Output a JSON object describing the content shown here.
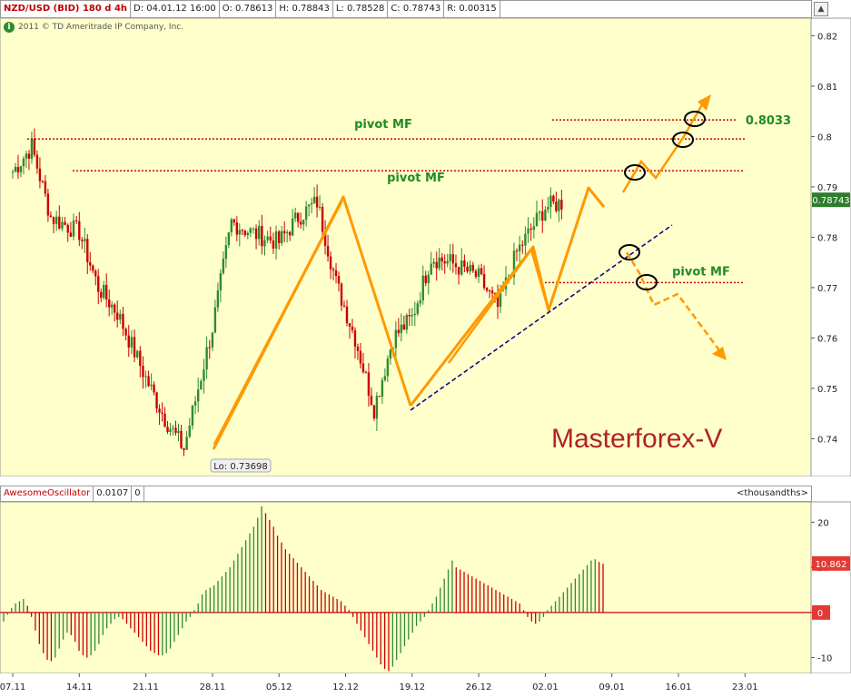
{
  "header": {
    "symbol": "NZD/USD (BID) 180 d 4h",
    "date": "D: 04.01.12 16:00",
    "open": "O: 0.78613",
    "high": "H: 0.78843",
    "low": "L: 0.78528",
    "close": "C: 0.78743",
    "range": "R: 0.00315",
    "copyright": "2011 © TD Ameritrade IP Company, Inc."
  },
  "colors": {
    "background": "#ffffcc",
    "bull": "#2e8b2e",
    "bear": "#cc0000",
    "orange": "#ff9900",
    "pivot": "#cc0000",
    "trend": "#000080",
    "annotation": "#228b22"
  },
  "chart_data": [
    {
      "type": "candlestick",
      "title": "NZD/USD (BID) 180 d 4h",
      "y_ticks": [
        "0.82",
        "0.81",
        "0.8",
        "0.79",
        "0.78",
        "0.77",
        "0.76",
        "0.75",
        "0.74"
      ],
      "ylim": [
        0.7325,
        0.8235
      ],
      "x_ticks": [
        "07.11",
        "14.11",
        "21.11",
        "28.11",
        "05.12",
        "12.12",
        "19.12",
        "26.12",
        "02.01",
        "09.01",
        "16.01",
        "23.01"
      ],
      "current_price": "0.78743",
      "low_label": "Lo: 0.73698",
      "watermark": "Masterforex-V",
      "path_points": [
        [
          "07.11",
          0.793
        ],
        [
          "09.11",
          0.798
        ],
        [
          "11.11",
          0.784
        ],
        [
          "14.11",
          0.781
        ],
        [
          "16.11",
          0.77
        ],
        [
          "18.11",
          0.765
        ],
        [
          "21.11",
          0.752
        ],
        [
          "23.11",
          0.744
        ],
        [
          "25.11",
          0.738
        ],
        [
          "28.11",
          0.762
        ],
        [
          "30.11",
          0.783
        ],
        [
          "02.12",
          0.781
        ],
        [
          "05.12",
          0.779
        ],
        [
          "07.12",
          0.784
        ],
        [
          "09.12",
          0.787
        ],
        [
          "11.12",
          0.771
        ],
        [
          "13.12",
          0.76
        ],
        [
          "15.12",
          0.746
        ],
        [
          "17.12",
          0.76
        ],
        [
          "19.12",
          0.764
        ],
        [
          "21.12",
          0.776
        ],
        [
          "23.12",
          0.775
        ],
        [
          "26.12",
          0.772
        ],
        [
          "28.12",
          0.766
        ],
        [
          "30.12",
          0.777
        ],
        [
          "02.01",
          0.786
        ],
        [
          "04.01",
          0.787
        ]
      ],
      "annotations": [
        {
          "text": "pivot MF",
          "price": 0.7995
        },
        {
          "text": "pivot MF",
          "price": 0.7932
        },
        {
          "text": "pivot MF",
          "price": 0.771
        },
        {
          "text": "0.8033",
          "price": 0.8033
        }
      ]
    },
    {
      "type": "bar",
      "title": "AwesomeOscillator",
      "value": "0.0107",
      "param": "0",
      "unit": "<thousandths>",
      "y_ticks": [
        "20",
        "10",
        "0",
        "-10"
      ],
      "ylim": [
        -13.5,
        24.5
      ],
      "current_value": "10.862",
      "zero_label": "0",
      "values": [
        -2,
        -0.5,
        1,
        2,
        2.5,
        3,
        1.5,
        -1,
        -4,
        -7,
        -9,
        -10.5,
        -10.8,
        -10,
        -8,
        -6,
        -4.5,
        -5,
        -6.5,
        -8.5,
        -9.5,
        -10,
        -9.5,
        -8.5,
        -7,
        -5,
        -3.5,
        -2.5,
        -1.5,
        -1,
        -1.5,
        -2.5,
        -3.5,
        -4.5,
        -5.5,
        -6.5,
        -7.5,
        -8.5,
        -9,
        -9.5,
        -9.5,
        -9,
        -8,
        -6.5,
        -5,
        -3.5,
        -2,
        -1,
        0.5,
        2,
        4,
        5,
        5.5,
        6,
        7,
        8,
        9,
        10,
        11.5,
        13,
        14.5,
        16,
        17.5,
        19,
        21,
        23.5,
        22,
        20.5,
        19,
        17,
        15.5,
        14,
        13,
        12,
        11,
        10,
        9,
        8,
        7,
        6,
        5,
        4.5,
        4,
        3.5,
        3,
        2.5,
        1.5,
        0.5,
        -1,
        -2.5,
        -4,
        -5.5,
        -7,
        -8.5,
        -10,
        -11.5,
        -12.5,
        -13,
        -12,
        -10.5,
        -9,
        -7.5,
        -6,
        -4.5,
        -3,
        -2,
        -1,
        0.5,
        2,
        3.5,
        5.5,
        7.5,
        9.5,
        11.5,
        10,
        9.5,
        9,
        8.5,
        8,
        7.5,
        7,
        6.5,
        6,
        5.5,
        5,
        4.5,
        4,
        3.5,
        3,
        2.5,
        2,
        0.5,
        -1,
        -2,
        -2.5,
        -2,
        -1,
        0.5,
        1.5,
        2.5,
        3.5,
        4.5,
        5.5,
        6.5,
        7.5,
        8.5,
        9.5,
        10.5,
        11.5,
        11.8,
        11.2,
        10.8
      ]
    }
  ]
}
